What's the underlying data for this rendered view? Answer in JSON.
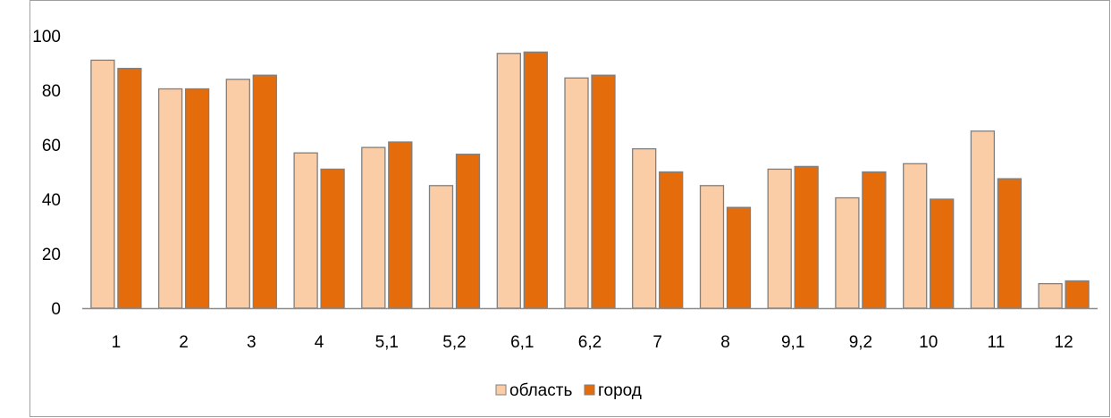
{
  "chart_data": {
    "type": "bar",
    "title": "",
    "xlabel": "",
    "ylabel": "",
    "categories": [
      "1",
      "2",
      "3",
      "4",
      "5,1",
      "5,2",
      "6,1",
      "6,2",
      "7",
      "8",
      "9,1",
      "9,2",
      "10",
      "11",
      "12"
    ],
    "series": [
      {
        "name": "область",
        "color": "#FBCDA6",
        "values": [
          91,
          80.5,
          84,
          57,
          59,
          45,
          93.5,
          84.5,
          58.5,
          45,
          51,
          40.5,
          53,
          65,
          9
        ]
      },
      {
        "name": "город",
        "color": "#E46C0A",
        "values": [
          88,
          80.5,
          85.5,
          51,
          61,
          56.5,
          94,
          85.5,
          50,
          37,
          52,
          50,
          40,
          47.5,
          10
        ]
      }
    ],
    "ylim": [
      0,
      100
    ],
    "yticks": [
      "0",
      "20",
      "40",
      "60",
      "80",
      "100"
    ],
    "grid": false,
    "legend_position": "bottom-center",
    "bar_outline_color": "#7F7F7F",
    "axis_color": "#8C8C8C",
    "frame_color": "#A0A0A0"
  }
}
